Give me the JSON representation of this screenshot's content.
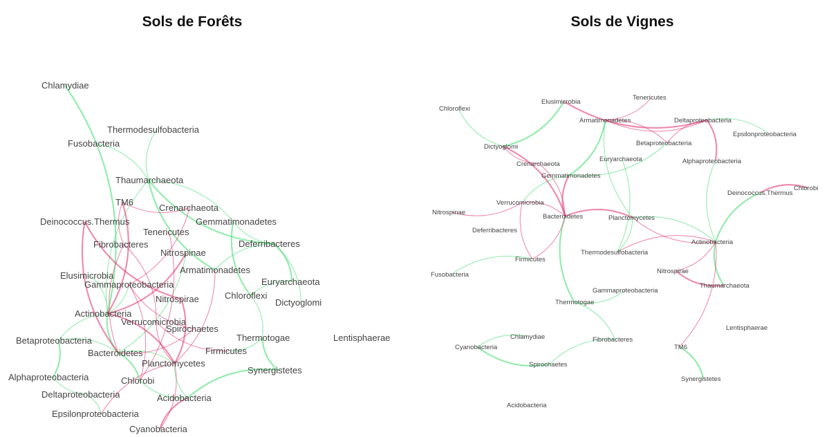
{
  "graphs": [
    {
      "title": "Sols de Forêts",
      "nodes": [
        "Chlamydiae",
        "Thermodesulfobacteria",
        "Fusobacteria",
        "Thaumarchaeota",
        "TM6",
        "Crenarchaeota",
        "Deinococcus.Thermus",
        "Gemmatimonadetes",
        "Tenericutes",
        "Fibrobacteres",
        "Deferribacteres",
        "Nitrospinae",
        "Armatimonadetes",
        "Elusimicrobia",
        "Gammaproteobacteria",
        "Euryarchaeota",
        "Chloroflexi",
        "Nitrospirae",
        "Dictyoglomi",
        "Actinobacteria",
        "Verrucomicrobia",
        "Spirochaetes",
        "Thermotogae",
        "Lentisphaerae",
        "Betaproteobacteria",
        "Bacteroidetes",
        "Firmicutes",
        "Planctomycetes",
        "Synergistetes",
        "Alphaproteobacteria",
        "Chlorobi",
        "Deltaproteobacteria",
        "Acidobacteria",
        "Epsilonproteobacteria",
        "Cyanobacteria"
      ]
    },
    {
      "title": "Sols de Vignes",
      "nodes": [
        "Tenericutes",
        "Chloroflexi",
        "Elusimicrobia",
        "Armatimonadetes",
        "Deltaproteobacteria",
        "Epsilonproteobacteria",
        "Betaproteobacteria",
        "Dictyoglomi",
        "Euryarchaeota",
        "Alphaproteobacteria",
        "Crenarchaeota",
        "Gemmatimonadetes",
        "Chlorobi",
        "Deinococcus.Thermus",
        "Verrucomicrobia",
        "Nitrospinae",
        "Bacteroidetes",
        "Planctomycetes",
        "Deferribacteres",
        "Actinobacteria",
        "Thermodesulfobacteria",
        "Firmicutes",
        "Nitrospirae",
        "Fusobacteria",
        "Thaumarchaeota",
        "Gammaproteobacteria",
        "Thermotogae",
        "Lentisphaerae",
        "Chlamydiae",
        "Fibrobacteres",
        "Cyanobacteria",
        "TM6",
        "Spirochaetes",
        "Synergistetes",
        "Acidobacteria"
      ]
    }
  ]
}
